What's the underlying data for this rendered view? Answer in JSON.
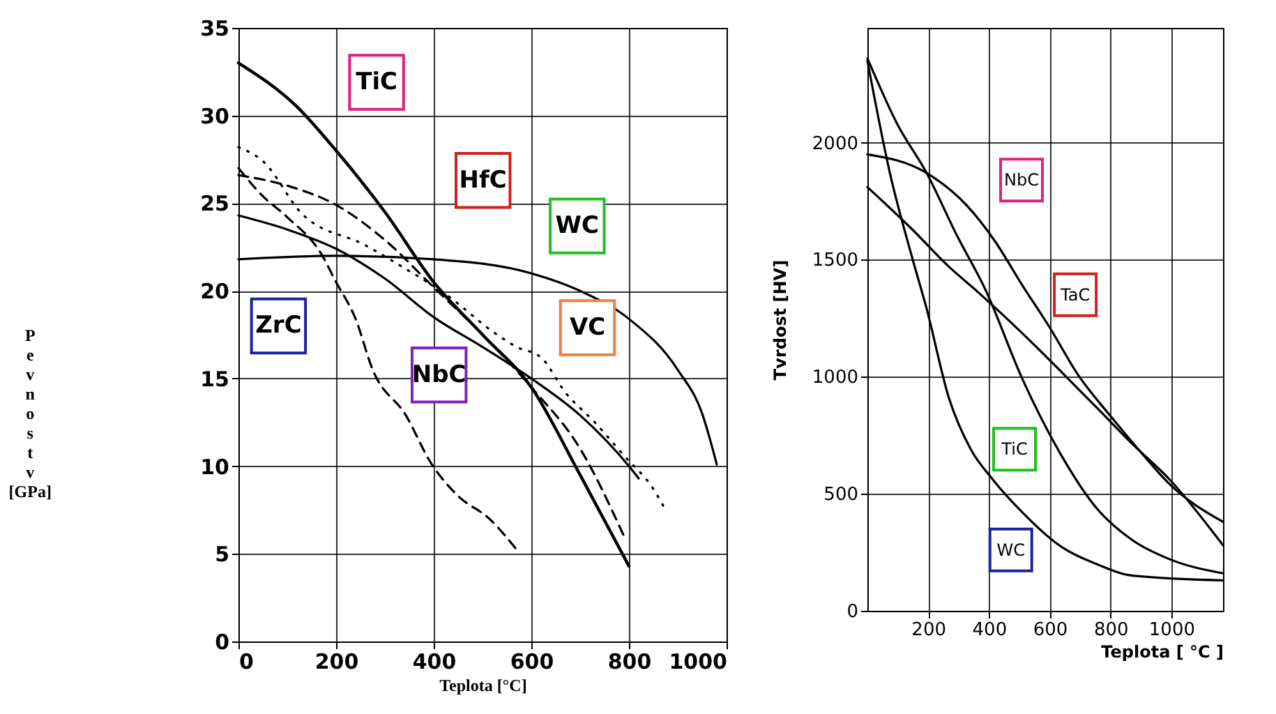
{
  "chart_data": [
    {
      "type": "line",
      "xlabel": "Teplota [°C]",
      "ylabel": "Pevnost v [GPa]",
      "xlim": [
        0,
        1000
      ],
      "ylim": [
        0,
        35
      ],
      "xticks": [
        0,
        200,
        400,
        600,
        800,
        1000
      ],
      "yticks": [
        0,
        5,
        10,
        15,
        20,
        25,
        30,
        35
      ],
      "grid": true,
      "series": [
        {
          "color": "#000000",
          "line_style": "solid",
          "x": [
            0,
            120,
            200,
            300,
            400,
            500,
            600,
            700,
            800
          ],
          "values": [
            33,
            30.5,
            28,
            24.5,
            20.5,
            17.5,
            14.5,
            9.5,
            4.3
          ]
        },
        {
          "color": "#000000",
          "line_style": "dashed",
          "x": [
            0,
            100,
            200,
            300,
            400,
            500,
            600,
            700,
            790
          ],
          "values": [
            26.6,
            26,
            24.9,
            22.9,
            20.2,
            17.5,
            14.5,
            11,
            6
          ]
        },
        {
          "color": "#000000",
          "line_style": "solid",
          "x": [
            0,
            200,
            400,
            600,
            700,
            800,
            900,
            950,
            980
          ],
          "values": [
            21.8,
            22,
            21.8,
            21,
            20,
            18.4,
            15.5,
            13,
            10.1
          ]
        },
        {
          "color": "#000000",
          "line_style": "dashed",
          "x": [
            0,
            50,
            100,
            172,
            198,
            240,
            275,
            343,
            394,
            450,
            514,
            574
          ],
          "values": [
            27,
            25.4,
            24.2,
            22,
            20.6,
            18.4,
            15.5,
            12.9,
            10.2,
            8.3,
            7,
            5.1
          ]
        },
        {
          "color": "#000000",
          "line_style": "solid",
          "x": [
            0,
            100,
            200,
            300,
            400,
            500,
            600,
            700,
            800,
            820
          ],
          "values": [
            24.3,
            23.5,
            22.4,
            20.7,
            18.5,
            16.8,
            15,
            12.9,
            10,
            9.3
          ]
        },
        {
          "color": "#000000",
          "line_style": "dotted",
          "x": [
            0,
            50,
            130,
            260,
            340,
            420,
            530,
            570,
            620,
            670,
            730,
            790,
            850,
            875
          ],
          "values": [
            28.2,
            27.4,
            24.4,
            22.6,
            21.3,
            19.9,
            17.5,
            16.8,
            16.2,
            14.2,
            12.5,
            10.6,
            8.7,
            7.5
          ]
        }
      ],
      "annotations": [
        {
          "text": "TiC",
          "x": 283,
          "y": 31.9
        },
        {
          "text": "HfC",
          "x": 501,
          "y": 26.3
        },
        {
          "text": "WC",
          "x": 694,
          "y": 23.7
        },
        {
          "text": "ZrC",
          "x": 82,
          "y": 18
        },
        {
          "text": "NbC",
          "x": 411,
          "y": 15.2
        },
        {
          "text": "VC",
          "x": 715,
          "y": 17.9
        }
      ]
    },
    {
      "type": "line",
      "xlabel": "Teplota [ °C ]",
      "ylabel": "Tvrdost [HV]",
      "xlim": [
        0,
        1170
      ],
      "ylim": [
        0,
        2490
      ],
      "xticks": [
        200,
        400,
        600,
        800,
        1000
      ],
      "yticks": [
        0,
        500,
        1000,
        1500,
        2000
      ],
      "grid": true,
      "series": [
        {
          "color": "#000000",
          "line_style": "solid",
          "x": [
            0,
            195,
            328,
            419,
            510,
            600,
            692,
            801,
            898,
            995,
            1170
          ],
          "values": [
            1950,
            1870,
            1730,
            1580,
            1390,
            1210,
            1010,
            830,
            680,
            540,
            380
          ]
        },
        {
          "color": "#000000",
          "line_style": "solid",
          "x": [
            0,
            147,
            268,
            365,
            522,
            631,
            753,
            874,
            995,
            1170
          ],
          "values": [
            1810,
            1630,
            1470,
            1360,
            1170,
            1030,
            870,
            710,
            560,
            280
          ]
        },
        {
          "color": "#000000",
          "line_style": "solid",
          "x": [
            0,
            98,
            195,
            292,
            389,
            510,
            631,
            753,
            874,
            995,
            1170
          ],
          "values": [
            2360,
            2080,
            1870,
            1610,
            1370,
            990,
            680,
            440,
            300,
            220,
            160
          ]
        },
        {
          "color": "#000000",
          "line_style": "solid",
          "x": [
            0,
            74,
            147,
            195,
            268,
            340,
            413,
            510,
            631,
            753,
            874,
            1170
          ],
          "values": [
            2350,
            1870,
            1510,
            1290,
            910,
            690,
            560,
            420,
            280,
            200,
            150,
            130
          ]
        }
      ],
      "annotations": [
        {
          "text": "NbC",
          "x": 507,
          "y": 1840
        },
        {
          "text": "TaC",
          "x": 684,
          "y": 1350
        },
        {
          "text": "TiC",
          "x": 484,
          "y": 690
        },
        {
          "text": "WC",
          "x": 472,
          "y": 260
        }
      ]
    }
  ]
}
